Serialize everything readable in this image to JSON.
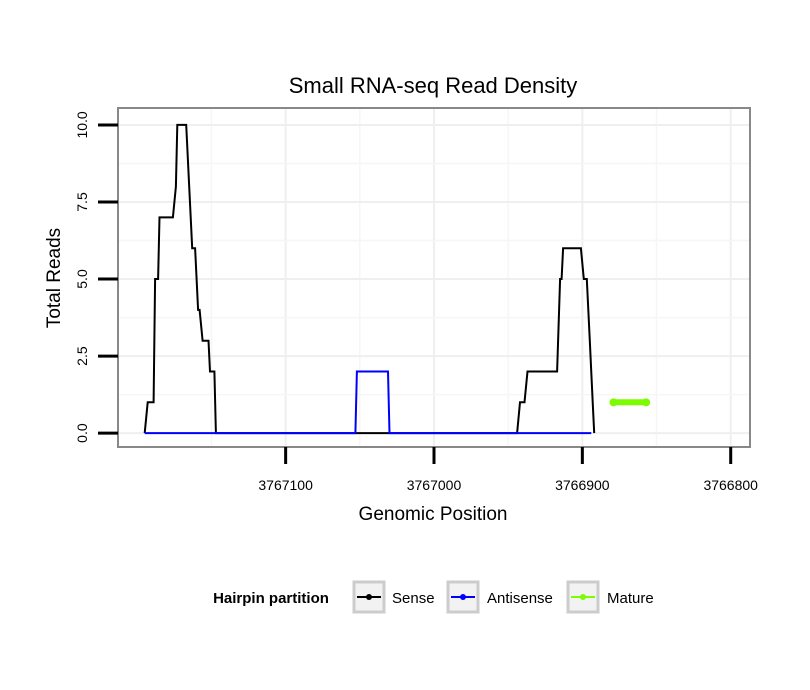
{
  "chart_data": {
    "type": "line",
    "title": "Small RNA-seq Read Density",
    "xlabel": "Genomic Position",
    "ylabel": "Total Reads",
    "x_reversed": true,
    "xlim": [
      3767213,
      3766787
    ],
    "ylim": [
      -0.45,
      10.55
    ],
    "x_ticks": [
      3767100,
      3767000,
      3766900,
      3766800
    ],
    "x_tick_labels": [
      "3767100",
      "3767000",
      "3766900",
      "3766800"
    ],
    "y_ticks": [
      0.0,
      2.5,
      5.0,
      7.5,
      10.0
    ],
    "y_tick_labels": [
      "0.0",
      "2.5",
      "5.0",
      "7.5",
      "10.0"
    ],
    "grid": true,
    "legend": {
      "title": "Hairpin partition",
      "position": "bottom",
      "entries": [
        "Sense",
        "Antisense",
        "Mature"
      ]
    },
    "series": [
      {
        "name": "Sense",
        "color": "#000000",
        "points": [
          [
            3767195,
            0
          ],
          [
            3767193,
            1
          ],
          [
            3767189,
            1
          ],
          [
            3767188,
            5
          ],
          [
            3767186,
            5
          ],
          [
            3767185,
            7
          ],
          [
            3767176,
            7
          ],
          [
            3767174,
            8
          ],
          [
            3767173,
            10
          ],
          [
            3767167,
            10
          ],
          [
            3767165,
            8
          ],
          [
            3767163,
            6
          ],
          [
            3767161,
            6
          ],
          [
            3767159,
            4
          ],
          [
            3767158,
            4
          ],
          [
            3767156,
            3
          ],
          [
            3767152,
            3
          ],
          [
            3767151,
            2
          ],
          [
            3767148,
            2
          ],
          [
            3767147,
            0
          ],
          [
            3766944,
            0
          ],
          [
            3766942,
            1
          ],
          [
            3766939,
            1
          ],
          [
            3766937,
            2
          ],
          [
            3766917,
            2
          ],
          [
            3766915,
            5
          ],
          [
            3766914,
            5
          ],
          [
            3766913,
            6
          ],
          [
            3766901,
            6
          ],
          [
            3766899,
            5
          ],
          [
            3766897,
            5
          ],
          [
            3766895,
            3
          ],
          [
            3766893,
            1
          ],
          [
            3766892,
            0
          ]
        ]
      },
      {
        "name": "Antisense",
        "color": "#0000ff",
        "points": [
          [
            3767195,
            0
          ],
          [
            3767053,
            0
          ],
          [
            3767052,
            2
          ],
          [
            3767031,
            2
          ],
          [
            3767030,
            0
          ],
          [
            3766943,
            0
          ],
          [
            3766941,
            0
          ],
          [
            3766934,
            0
          ],
          [
            3766932,
            0
          ],
          [
            3766894,
            0
          ]
        ]
      },
      {
        "name": "Mature",
        "color": "#7cfc00",
        "points": [
          [
            3766879,
            1
          ],
          [
            3766857,
            1
          ]
        ]
      }
    ]
  }
}
